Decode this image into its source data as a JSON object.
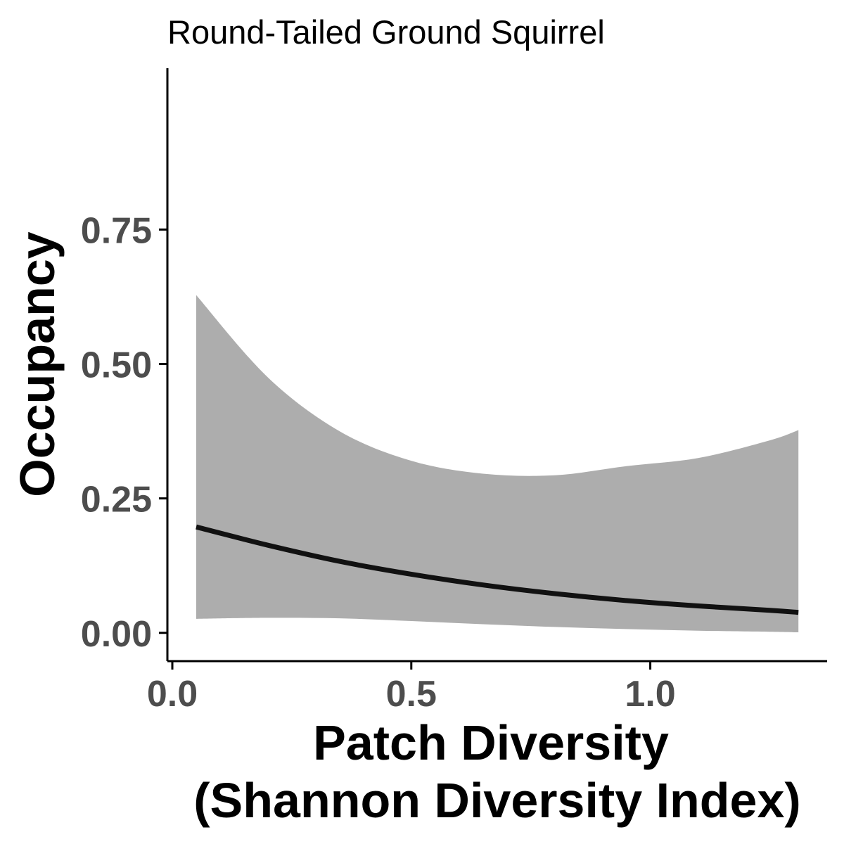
{
  "chart_data": {
    "type": "line",
    "title": "Round-Tailed Ground Squirrel",
    "xlabel_lines": [
      "Patch Diversity",
      "(Shannon Diversity Index)"
    ],
    "ylabel": "Occupancy",
    "xlim": [
      0.0,
      1.37
    ],
    "ylim": [
      -0.05,
      1.05
    ],
    "x_ticks": [
      {
        "value": 0.0,
        "label": "0.0"
      },
      {
        "value": 0.5,
        "label": "0.5"
      },
      {
        "value": 1.0,
        "label": "1.0"
      }
    ],
    "y_ticks": [
      {
        "value": 0.0,
        "label": "0.00"
      },
      {
        "value": 0.25,
        "label": "0.25"
      },
      {
        "value": 0.5,
        "label": "0.50"
      },
      {
        "value": 0.75,
        "label": "0.75"
      }
    ],
    "grid": false,
    "colors": {
      "line": "#111111",
      "band": "#adadad",
      "axis": "#000000",
      "tick_label": "#4d4d4d"
    },
    "series": [
      {
        "x": [
          0.05,
          0.2,
          0.35,
          0.5,
          0.65,
          0.8,
          0.95,
          1.1,
          1.25,
          1.31
        ],
        "y": [
          0.197,
          0.163,
          0.133,
          0.109,
          0.089,
          0.073,
          0.06,
          0.05,
          0.042,
          0.038
        ],
        "lower": [
          0.026,
          0.028,
          0.027,
          0.022,
          0.016,
          0.011,
          0.007,
          0.004,
          0.002,
          0.001
        ],
        "upper": [
          0.628,
          0.475,
          0.375,
          0.32,
          0.296,
          0.293,
          0.31,
          0.325,
          0.358,
          0.377
        ]
      }
    ]
  }
}
